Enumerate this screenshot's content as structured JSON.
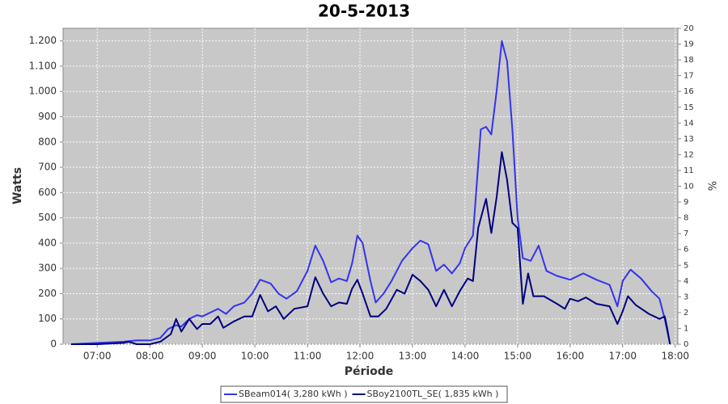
{
  "chart_data": {
    "type": "line",
    "title": "20-5-2013",
    "xlabel": "Période",
    "ylabel": "Watts",
    "y2label": "%",
    "xlim": [
      6.35,
      18.05
    ],
    "xticks": [
      {
        "value": 7,
        "label": "07:00"
      },
      {
        "value": 8,
        "label": "08:00"
      },
      {
        "value": 9,
        "label": "09:00"
      },
      {
        "value": 10,
        "label": "10:00"
      },
      {
        "value": 11,
        "label": "11:00"
      },
      {
        "value": 12,
        "label": "12:00"
      },
      {
        "value": 13,
        "label": "13:00"
      },
      {
        "value": 14,
        "label": "14:00"
      },
      {
        "value": 15,
        "label": "15:00"
      },
      {
        "value": 16,
        "label": "16:00"
      },
      {
        "value": 17,
        "label": "17:00"
      },
      {
        "value": 18,
        "label": "18:00"
      }
    ],
    "ylim": [
      0,
      1250
    ],
    "yticks": [
      0,
      100,
      200,
      300,
      400,
      500,
      600,
      700,
      800,
      900,
      {
        "value": 1000,
        "label": "1.000"
      },
      {
        "value": 1100,
        "label": "1.100"
      },
      {
        "value": 1200,
        "label": "1.200"
      }
    ],
    "y2lim": [
      0,
      20
    ],
    "y2ticks": [
      0,
      1,
      2,
      3,
      4,
      5,
      6,
      7,
      8,
      9,
      10,
      11,
      12,
      13,
      14,
      15,
      16,
      17,
      18,
      19,
      20
    ],
    "grid": true,
    "legend": "bottom",
    "series": [
      {
        "name": "SBeam014( 3,280 kWh )",
        "color": "#3333ee",
        "x": [
          6.5,
          7.0,
          7.5,
          7.75,
          8.0,
          8.2,
          8.35,
          8.5,
          8.6,
          8.75,
          8.9,
          9.0,
          9.15,
          9.3,
          9.45,
          9.6,
          9.8,
          9.95,
          10.1,
          10.3,
          10.45,
          10.6,
          10.8,
          11.0,
          11.15,
          11.3,
          11.45,
          11.6,
          11.75,
          11.85,
          11.95,
          12.05,
          12.2,
          12.3,
          12.45,
          12.6,
          12.8,
          13.0,
          13.15,
          13.3,
          13.45,
          13.6,
          13.75,
          13.9,
          14.0,
          14.15,
          14.3,
          14.4,
          14.5,
          14.6,
          14.7,
          14.8,
          14.9,
          15.0,
          15.1,
          15.25,
          15.4,
          15.55,
          15.75,
          16.0,
          16.25,
          16.5,
          16.75,
          16.9,
          17.0,
          17.15,
          17.35,
          17.55,
          17.7,
          17.8,
          17.9
        ],
        "values": [
          0,
          5,
          10,
          15,
          15,
          25,
          60,
          75,
          70,
          100,
          115,
          110,
          125,
          140,
          120,
          150,
          165,
          200,
          255,
          240,
          200,
          180,
          210,
          290,
          390,
          330,
          245,
          260,
          250,
          320,
          430,
          400,
          250,
          165,
          200,
          250,
          330,
          380,
          410,
          395,
          290,
          315,
          280,
          320,
          380,
          430,
          850,
          860,
          830,
          1000,
          1200,
          1120,
          850,
          500,
          340,
          330,
          390,
          290,
          270,
          255,
          280,
          255,
          235,
          150,
          250,
          295,
          260,
          210,
          180,
          100,
          0
        ]
      },
      {
        "name": "SBoy2100TL_SE( 1,835 kWh )",
        "color": "#000080",
        "x": [
          6.5,
          7.0,
          7.5,
          7.6,
          7.75,
          8.0,
          8.2,
          8.4,
          8.5,
          8.6,
          8.75,
          8.9,
          9.0,
          9.15,
          9.3,
          9.4,
          9.6,
          9.8,
          9.95,
          10.1,
          10.25,
          10.4,
          10.55,
          10.75,
          11.0,
          11.15,
          11.3,
          11.45,
          11.6,
          11.75,
          11.85,
          11.95,
          12.05,
          12.2,
          12.35,
          12.5,
          12.7,
          12.85,
          13.0,
          13.15,
          13.3,
          13.45,
          13.6,
          13.75,
          13.9,
          14.05,
          14.15,
          14.25,
          14.4,
          14.5,
          14.6,
          14.7,
          14.8,
          14.9,
          15.0,
          15.1,
          15.2,
          15.3,
          15.5,
          15.75,
          15.9,
          16.0,
          16.15,
          16.3,
          16.5,
          16.75,
          16.9,
          17.0,
          17.1,
          17.25,
          17.5,
          17.7,
          17.8,
          17.85,
          17.9
        ],
        "values": [
          0,
          0,
          5,
          10,
          0,
          0,
          10,
          40,
          100,
          50,
          100,
          60,
          80,
          80,
          110,
          65,
          90,
          110,
          110,
          195,
          130,
          150,
          100,
          140,
          150,
          265,
          200,
          150,
          165,
          160,
          220,
          255,
          200,
          110,
          110,
          140,
          215,
          200,
          275,
          250,
          215,
          150,
          215,
          150,
          210,
          260,
          250,
          460,
          575,
          440,
          580,
          760,
          650,
          480,
          460,
          160,
          280,
          190,
          190,
          160,
          140,
          180,
          170,
          185,
          160,
          150,
          80,
          130,
          190,
          155,
          120,
          100,
          110,
          60,
          0
        ]
      }
    ]
  }
}
